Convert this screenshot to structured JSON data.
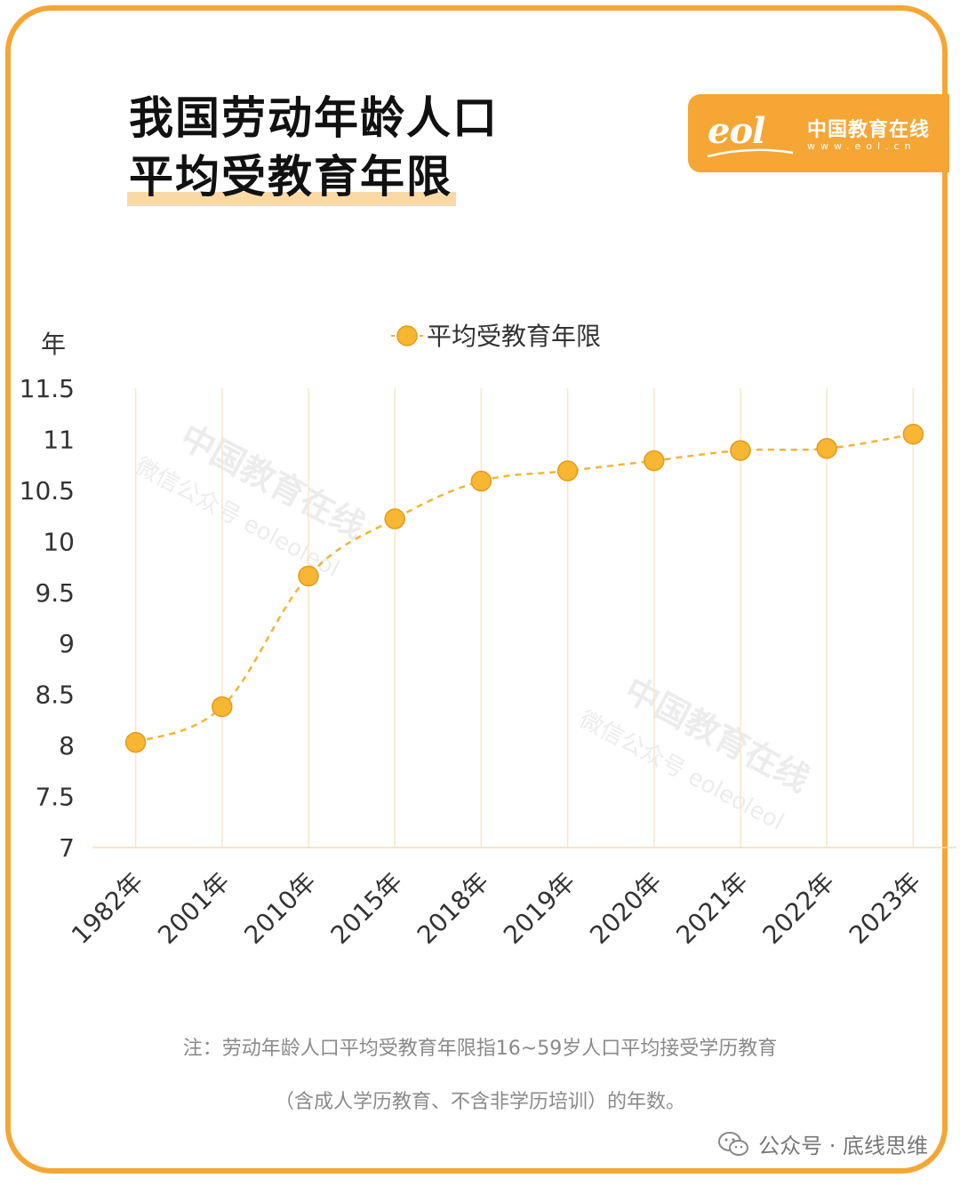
{
  "title": {
    "line1": "我国劳动年龄人口",
    "line2": "平均受教育年限"
  },
  "logo": {
    "mark": "eol",
    "name_cn": "中国教育在线",
    "url": "www.eol.cn"
  },
  "watermark": {
    "name": "中国教育在线",
    "sub": "微信公众号 eoleoleol"
  },
  "chart_data": {
    "type": "line",
    "title": "",
    "ylabel": "年",
    "xlabel": "",
    "ylim": [
      7,
      11.5
    ],
    "yticks": [
      "11.5",
      "11",
      "10.5",
      "10",
      "9.5",
      "9",
      "8.5",
      "8",
      "7.5",
      "7"
    ],
    "categories": [
      "1982年",
      "2001年",
      "2010年",
      "2015年",
      "2018年",
      "2019年",
      "2020年",
      "2021年",
      "2022年",
      "2023年"
    ],
    "series": [
      {
        "name": "平均受教育年限",
        "values": [
          8.03,
          8.38,
          9.66,
          10.22,
          10.59,
          10.69,
          10.79,
          10.89,
          10.91,
          11.05
        ]
      }
    ],
    "legend_position": "top-center",
    "grid": "vertical",
    "line_style": "dashed",
    "color": "#F5B335"
  },
  "note": {
    "line1": "注：劳动年龄人口平均受教育年限指16~59岁人口平均接受学历教育",
    "line2": "（含成人学历教育、不含非学历培训）的年数。"
  },
  "footer": {
    "text": "公众号 · 底线思维"
  },
  "colors": {
    "accent": "#F5A635",
    "marker": "#F7B733",
    "highlight": "#FAD9A8"
  }
}
